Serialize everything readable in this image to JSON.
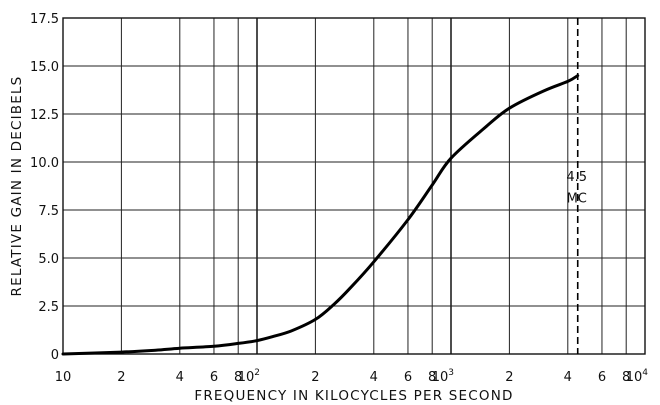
{
  "chart_data": {
    "type": "line",
    "title": "",
    "xlabel": "FREQUENCY IN KILOCYCLES PER SECOND",
    "ylabel": "RELATIVE GAIN IN DECIBELS",
    "x_scale": "log",
    "xlim": [
      10,
      10000
    ],
    "ylim": [
      0,
      17.5
    ],
    "grid": true,
    "y_ticks": [
      "0",
      "2.5",
      "5.0",
      "7.5",
      "10.0",
      "12.5",
      "15.0",
      "17.5"
    ],
    "x_tick_labels": [
      {
        "value": 10,
        "label": "10"
      },
      {
        "value": 20,
        "label": "2"
      },
      {
        "value": 40,
        "label": "4"
      },
      {
        "value": 60,
        "label": "6"
      },
      {
        "value": 80,
        "label": "8"
      },
      {
        "value": 100,
        "label": "10",
        "exp": "2"
      },
      {
        "value": 200,
        "label": "2"
      },
      {
        "value": 400,
        "label": "4"
      },
      {
        "value": 600,
        "label": "6"
      },
      {
        "value": 800,
        "label": "8"
      },
      {
        "value": 1000,
        "label": "10",
        "exp": "3"
      },
      {
        "value": 2000,
        "label": "2"
      },
      {
        "value": 4000,
        "label": "4"
      },
      {
        "value": 6000,
        "label": "6"
      },
      {
        "value": 8000,
        "label": "8"
      },
      {
        "value": 10000,
        "label": "10",
        "exp": "4"
      }
    ],
    "series": [
      {
        "x": [
          10,
          20,
          30,
          40,
          60,
          80,
          100,
          120,
          150,
          200,
          250,
          300,
          400,
          600,
          800,
          1000,
          1500,
          2000,
          3000,
          4000,
          4500
        ],
        "y": [
          0.0,
          0.1,
          0.2,
          0.3,
          0.4,
          0.55,
          0.7,
          0.9,
          1.2,
          1.8,
          2.6,
          3.4,
          4.8,
          7.0,
          8.8,
          10.2,
          11.8,
          12.8,
          13.7,
          14.2,
          14.5
        ]
      }
    ],
    "reference_line": {
      "x": 4500,
      "style": "dashed"
    },
    "annotations": [
      {
        "text": "4.5",
        "x": 4500,
        "y": 9.0
      },
      {
        "text": "MC",
        "x": 4500,
        "y": 7.9
      }
    ]
  }
}
